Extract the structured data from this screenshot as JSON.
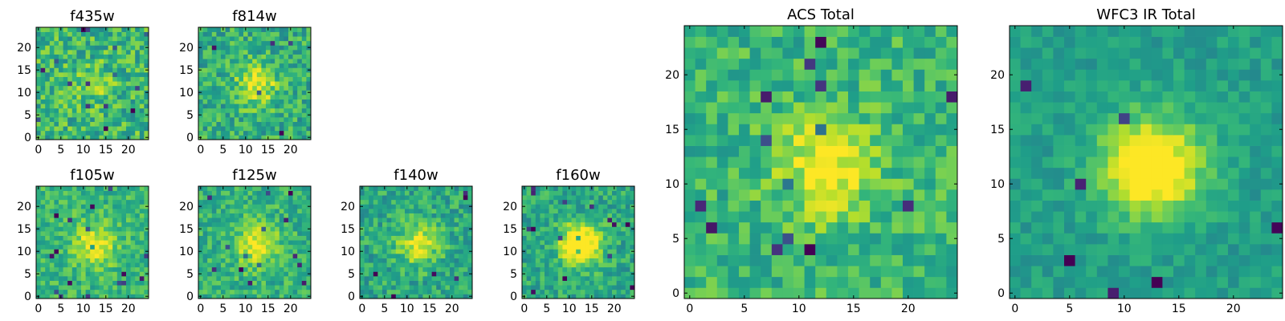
{
  "colormap": "viridis",
  "colors": {
    "viridis_stops": [
      "#440154",
      "#482878",
      "#3e4989",
      "#31688e",
      "#26828e",
      "#1f9e89",
      "#35b779",
      "#6ece58",
      "#b5de2b",
      "#fde725"
    ],
    "frame": "#000000",
    "background": "#ffffff"
  },
  "chart_data": [
    {
      "type": "heatmap",
      "title": "f435w",
      "grid_size": [
        25,
        25
      ],
      "xlim": [
        0,
        24
      ],
      "ylim": [
        0,
        24
      ],
      "xticks": [
        "0",
        "5",
        "10",
        "15",
        "20"
      ],
      "yticks": [
        "0",
        "5",
        "10",
        "15",
        "20"
      ],
      "center_brightness": "weak",
      "mean_level": 0.66,
      "noise": 0.2
    },
    {
      "type": "heatmap",
      "title": "f814w",
      "grid_size": [
        25,
        25
      ],
      "xlim": [
        0,
        24
      ],
      "ylim": [
        0,
        24
      ],
      "xticks": [
        "0",
        "5",
        "10",
        "15",
        "20"
      ],
      "yticks": [
        "0",
        "5",
        "10",
        "15",
        "20"
      ],
      "center_brightness": "moderate",
      "mean_level": 0.62,
      "noise": 0.18
    },
    {
      "type": "heatmap",
      "title": "f105w",
      "grid_size": [
        25,
        25
      ],
      "xlim": [
        0,
        24
      ],
      "ylim": [
        0,
        24
      ],
      "xticks": [
        "0",
        "5",
        "10",
        "15",
        "20"
      ],
      "yticks": [
        "0",
        "5",
        "10",
        "15",
        "20"
      ],
      "center_brightness": "moderate",
      "mean_level": 0.66,
      "noise": 0.14
    },
    {
      "type": "heatmap",
      "title": "f125w",
      "grid_size": [
        25,
        25
      ],
      "xlim": [
        0,
        24
      ],
      "ylim": [
        0,
        24
      ],
      "xticks": [
        "0",
        "5",
        "10",
        "15",
        "20"
      ],
      "yticks": [
        "0",
        "5",
        "10",
        "15",
        "20"
      ],
      "center_brightness": "moderate",
      "mean_level": 0.64,
      "noise": 0.15
    },
    {
      "type": "heatmap",
      "title": "f140w",
      "grid_size": [
        25,
        25
      ],
      "xlim": [
        0,
        24
      ],
      "ylim": [
        0,
        24
      ],
      "xticks": [
        "0",
        "5",
        "10",
        "15",
        "20"
      ],
      "yticks": [
        "0",
        "5",
        "10",
        "15",
        "20"
      ],
      "center_brightness": "moderate",
      "mean_level": 0.6,
      "noise": 0.16
    },
    {
      "type": "heatmap",
      "title": "f160w",
      "grid_size": [
        25,
        25
      ],
      "xlim": [
        0,
        24
      ],
      "ylim": [
        0,
        24
      ],
      "xticks": [
        "0",
        "5",
        "10",
        "15",
        "20"
      ],
      "yticks": [
        "0",
        "5",
        "10",
        "15",
        "20"
      ],
      "center_brightness": "strong",
      "mean_level": 0.6,
      "noise": 0.15
    },
    {
      "type": "heatmap",
      "title": "ACS Total",
      "grid_size": [
        25,
        25
      ],
      "xlim": [
        0,
        24
      ],
      "ylim": [
        0,
        24
      ],
      "xticks": [
        "0",
        "5",
        "10",
        "15",
        "20"
      ],
      "yticks": [
        "0",
        "5",
        "10",
        "15",
        "20"
      ],
      "center_brightness": "moderate",
      "mean_level": 0.66,
      "noise": 0.15
    },
    {
      "type": "heatmap",
      "title": "WFC3 IR Total",
      "grid_size": [
        25,
        25
      ],
      "xlim": [
        0,
        24
      ],
      "ylim": [
        0,
        24
      ],
      "xticks": [
        "0",
        "5",
        "10",
        "15",
        "20"
      ],
      "yticks": [
        "0",
        "5",
        "10",
        "15",
        "20"
      ],
      "center_brightness": "strong",
      "mean_level": 0.56,
      "noise": 0.09
    }
  ]
}
